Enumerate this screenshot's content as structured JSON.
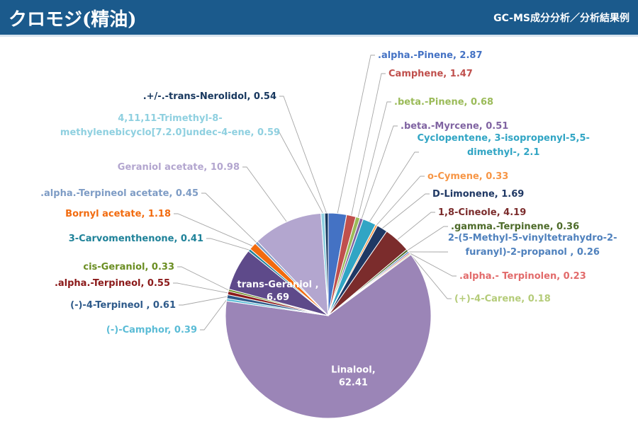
{
  "header": {
    "title": "クロモジ(精油)",
    "subtitle": "GC-MS成分分析／分析結果例"
  },
  "colors": {
    "header_bg": "#1b5a8c"
  },
  "chart_data": {
    "type": "pie",
    "title": "",
    "slices": [
      {
        "label": ".alpha.-Pinene, 2.87",
        "value": 2.87,
        "color": "#4472c4"
      },
      {
        "label": "Camphene, 1.47",
        "value": 1.47,
        "color": "#c0504d"
      },
      {
        "label": ".beta.-Pinene, 0.68",
        "value": 0.68,
        "color": "#9bbb59"
      },
      {
        "label": ".beta.-Myrcene, 0.51",
        "value": 0.51,
        "color": "#8064a2"
      },
      {
        "label": "Cyclopentene, 3-isopropenyl-5,5-dimethyl-, 2.1",
        "lines": [
          "Cyclopentene, 3-isopropenyl-5,5-",
          "dimethyl-, 2.1"
        ],
        "value": 2.1,
        "color": "#31a5c4"
      },
      {
        "label": "o-Cymene, 0.33",
        "value": 0.33,
        "color": "#f79646"
      },
      {
        "label": "D-Limonene, 1.69",
        "value": 1.69,
        "color": "#1f3864"
      },
      {
        "label": "1,8-Cineole, 4.19",
        "value": 4.19,
        "color": "#7b2c2c"
      },
      {
        "label": ".gamma.-Terpinene, 0.36",
        "value": 0.36,
        "color": "#4e6b2a"
      },
      {
        "label": "2-(5-Methyl-5-vinyltetrahydro-2-furanyl)-2-propanol , 0.26",
        "lines": [
          "2-(5-Methyl-5-vinyltetrahydro-2-",
          "furanyl)-2-propanol , 0.26"
        ],
        "value": 0.26,
        "color": "#4f81bd"
      },
      {
        "label": ".alpha.- Terpinolen, 0.23",
        "value": 0.23,
        "color": "#e26b6b"
      },
      {
        "label": "(+)-4-Carene, 0.18",
        "value": 0.18,
        "color": "#b5cc7a"
      },
      {
        "label": "Linalool, 62.41",
        "value": 62.41,
        "color": "#9b85b7",
        "inside": true,
        "lines": [
          "Linalool,",
          "62.41"
        ]
      },
      {
        "label": "(-)-Camphor, 0.39",
        "value": 0.39,
        "color": "#5bbcd6"
      },
      {
        "label": "(-)-4-Terpineol , 0.61",
        "value": 0.61,
        "color": "#2e5a8a"
      },
      {
        "label": ".alpha.-Terpineol, 0.55",
        "value": 0.55,
        "color": "#8b1a1a"
      },
      {
        "label": "cis-Geraniol, 0.33",
        "value": 0.33,
        "color": "#6b8e23"
      },
      {
        "label": "trans-Geraniol , 6.69",
        "value": 6.69,
        "color": "#5e4a8a",
        "inside": true,
        "lines": [
          "trans-Geraniol ,",
          "6.69"
        ]
      },
      {
        "label": "3-Carvomenthenone, 0.41",
        "value": 0.41,
        "color": "#1f8299"
      },
      {
        "label": "Bornyl acetate, 1.18",
        "value": 1.18,
        "color": "#f26b0f"
      },
      {
        "label": ".alpha.-Terpineol acetate, 0.45",
        "value": 0.45,
        "color": "#7e9cc5"
      },
      {
        "label": "Geraniol acetate, 10.98",
        "value": 10.98,
        "color": "#b3a6cf"
      },
      {
        "label": "4,11,11-Trimethyl-8-methylenebicyclo[7.2.0]undec-4-ene, 0.59",
        "lines": [
          "4,11,11-Trimethyl-8-",
          "methylenebicyclo[7.2.0]undec-4-ene, 0.59"
        ],
        "value": 0.59,
        "color": "#8fd0e0"
      },
      {
        "label": ".+/-.-trans-Nerolidol, 0.54",
        "value": 0.54,
        "color": "#17375e"
      }
    ]
  }
}
